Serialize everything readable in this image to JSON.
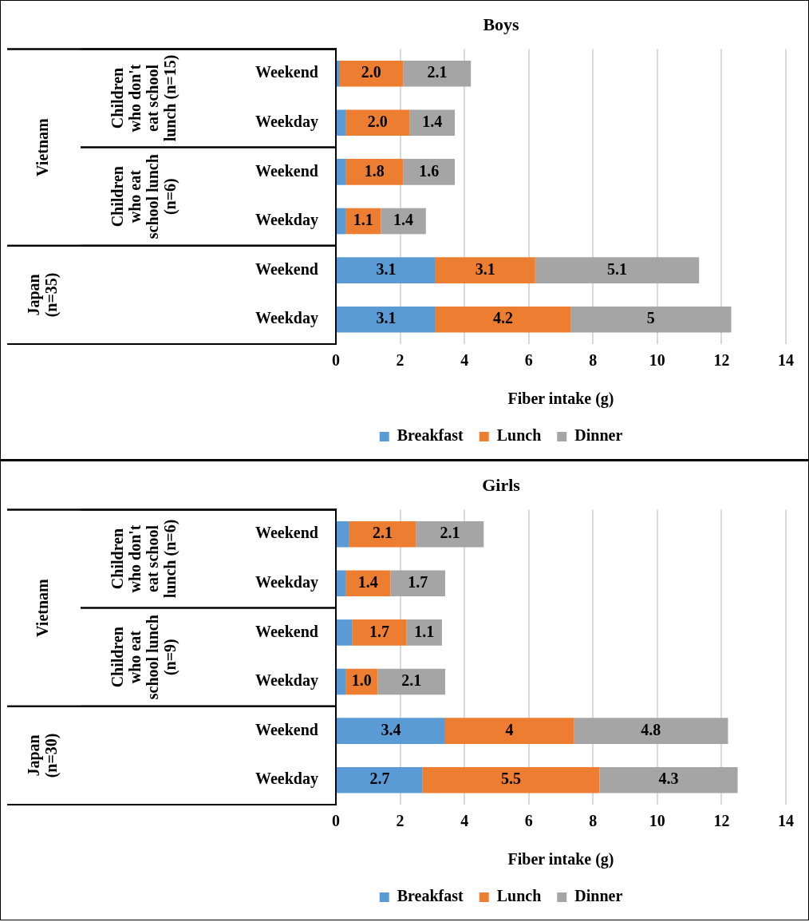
{
  "chart_data": [
    {
      "type": "bar",
      "orientation": "horizontal",
      "stacked": true,
      "title": "Boys",
      "xlabel": "Fiber intake (g)",
      "categories": [
        "Weekend",
        "Weekday",
        "Weekend",
        "Weekday",
        "Weekend",
        "Weekday"
      ],
      "annotations": [
        "Children who don't eat school lunch (n=15)",
        "Children who eat school lunch (n=6)",
        "Vietnam",
        "Japan (n=35)"
      ],
      "xlim": [
        0,
        14
      ],
      "xticks": [
        0,
        2,
        4,
        6,
        8,
        10,
        12,
        14
      ],
      "grid": "x",
      "legend": "bottom",
      "series": [
        {
          "name": "Breakfast",
          "color": "#5b9bd5",
          "values": [
            0.1,
            0.3,
            0.3,
            0.3,
            3.1,
            3.1
          ],
          "value_labels": [
            null,
            null,
            null,
            null,
            "3.1",
            "3.1"
          ]
        },
        {
          "name": "Lunch",
          "color": "#ed7d31",
          "values": [
            2.0,
            2.0,
            1.8,
            1.1,
            3.1,
            4.2
          ],
          "value_labels": [
            "2.0",
            "2.0",
            "1.8",
            "1.1",
            "3.1",
            "4.2"
          ]
        },
        {
          "name": "Dinner",
          "color": "#a5a5a5",
          "values": [
            2.1,
            1.4,
            1.6,
            1.4,
            5.1,
            5
          ],
          "value_labels": [
            "2.1",
            "1.4",
            "1.6",
            "1.4",
            "5.1",
            "5"
          ]
        }
      ]
    },
    {
      "type": "bar",
      "orientation": "horizontal",
      "stacked": true,
      "title": "Girls",
      "xlabel": "Fiber intake (g)",
      "categories": [
        "Weekend",
        "Weekday",
        "Weekend",
        "Weekday",
        "Weekend",
        "Weekday"
      ],
      "annotations": [
        "Children who don't eat school lunch (n=6)",
        "Children who eat school lunch (n=9)",
        "Vietnam",
        "Japan (n=30)"
      ],
      "xlim": [
        0,
        14
      ],
      "xticks": [
        0,
        2,
        4,
        6,
        8,
        10,
        12,
        14
      ],
      "grid": "x",
      "legend": "bottom",
      "series": [
        {
          "name": "Breakfast",
          "color": "#5b9bd5",
          "values": [
            0.4,
            0.3,
            0.5,
            0.3,
            3.4,
            2.7
          ],
          "value_labels": [
            null,
            null,
            null,
            null,
            "3.4",
            "2.7"
          ]
        },
        {
          "name": "Lunch",
          "color": "#ed7d31",
          "values": [
            2.1,
            1.4,
            1.7,
            1.0,
            4,
            5.5
          ],
          "value_labels": [
            "2.1",
            "1.4",
            "1.7",
            "1.0",
            "4",
            "5.5"
          ]
        },
        {
          "name": "Dinner",
          "color": "#a5a5a5",
          "values": [
            2.1,
            1.7,
            1.1,
            2.1,
            4.8,
            4.3
          ],
          "value_labels": [
            "2.1",
            "1.7",
            "1.1",
            "2.1",
            "4.8",
            "4.3"
          ]
        }
      ]
    }
  ]
}
